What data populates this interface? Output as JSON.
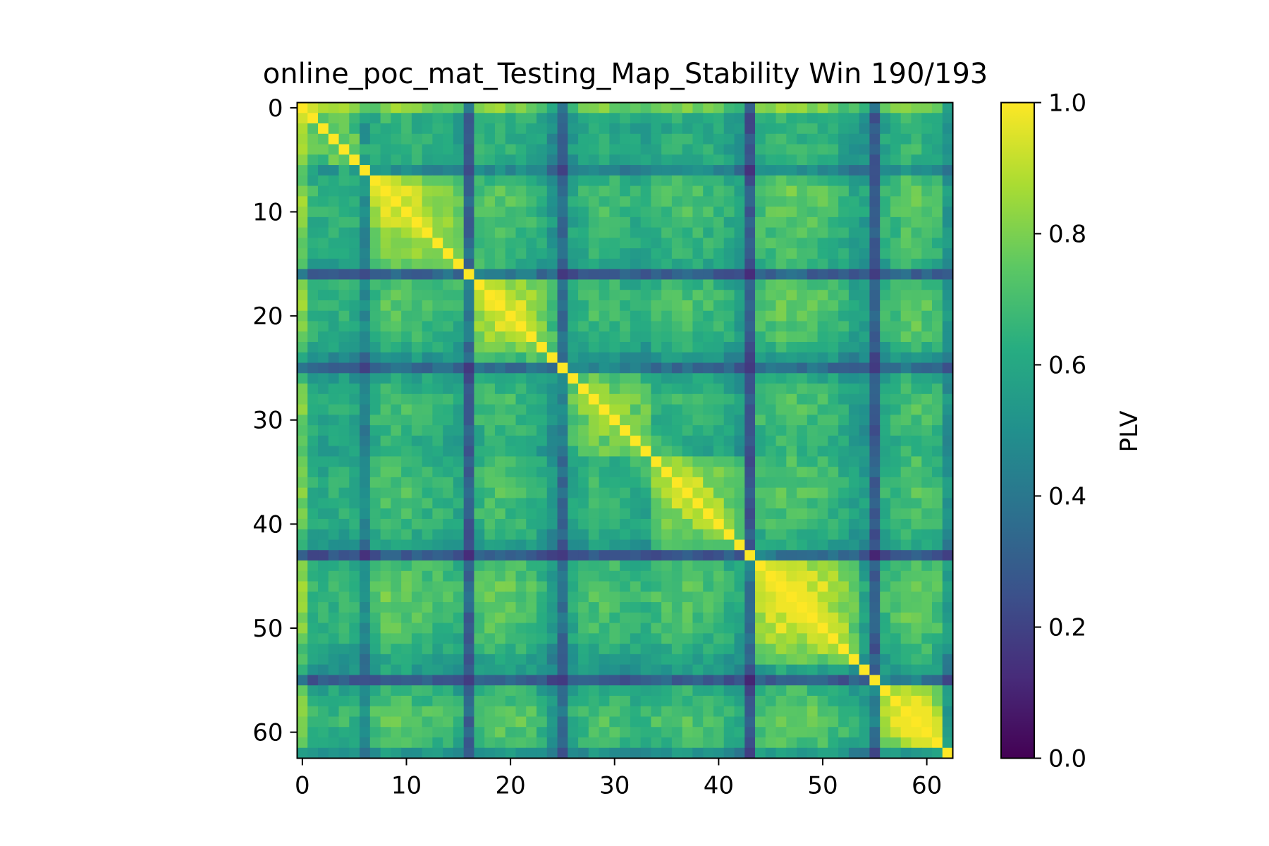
{
  "chart_data": {
    "type": "heatmap",
    "title": "online_poc_mat_Testing_Map_Stability Win 190/193",
    "xlabel": "",
    "ylabel": "",
    "n": 63,
    "xlim": [
      -0.5,
      62.5
    ],
    "ylim": [
      62.5,
      -0.5
    ],
    "x_ticks": [
      0,
      10,
      20,
      30,
      40,
      50,
      60
    ],
    "y_ticks": [
      0,
      10,
      20,
      30,
      40,
      50,
      60
    ],
    "colorbar": {
      "label": "PLV",
      "range": [
        0.0,
        1.0
      ],
      "ticks": [
        "0.0",
        "0.2",
        "0.4",
        "0.6",
        "0.8",
        "1.0"
      ],
      "colormap": "viridis"
    },
    "groups": [
      [
        0,
        6
      ],
      [
        7,
        15
      ],
      [
        16,
        24
      ],
      [
        25,
        33
      ],
      [
        34,
        42
      ],
      [
        43,
        53
      ],
      [
        54,
        54
      ],
      [
        55,
        61
      ],
      [
        62,
        62
      ]
    ],
    "row_levels": [
      1.0,
      0.65,
      0.6,
      0.62,
      0.65,
      0.6,
      0.35,
      0.7,
      0.8,
      0.8,
      0.78,
      0.75,
      0.72,
      0.7,
      0.68,
      0.6,
      0.15,
      0.72,
      0.78,
      0.8,
      0.78,
      0.75,
      0.72,
      0.6,
      0.45,
      0.2,
      0.55,
      0.65,
      0.72,
      0.72,
      0.7,
      0.65,
      0.62,
      0.6,
      0.68,
      0.72,
      0.75,
      0.75,
      0.72,
      0.7,
      0.68,
      0.6,
      0.5,
      0.12,
      0.75,
      0.8,
      0.85,
      0.85,
      0.82,
      0.8,
      0.78,
      0.72,
      0.65,
      0.55,
      0.5,
      0.15,
      0.65,
      0.75,
      0.82,
      0.85,
      0.8,
      0.72,
      0.45
    ],
    "diagonal_value": 1.0
  }
}
